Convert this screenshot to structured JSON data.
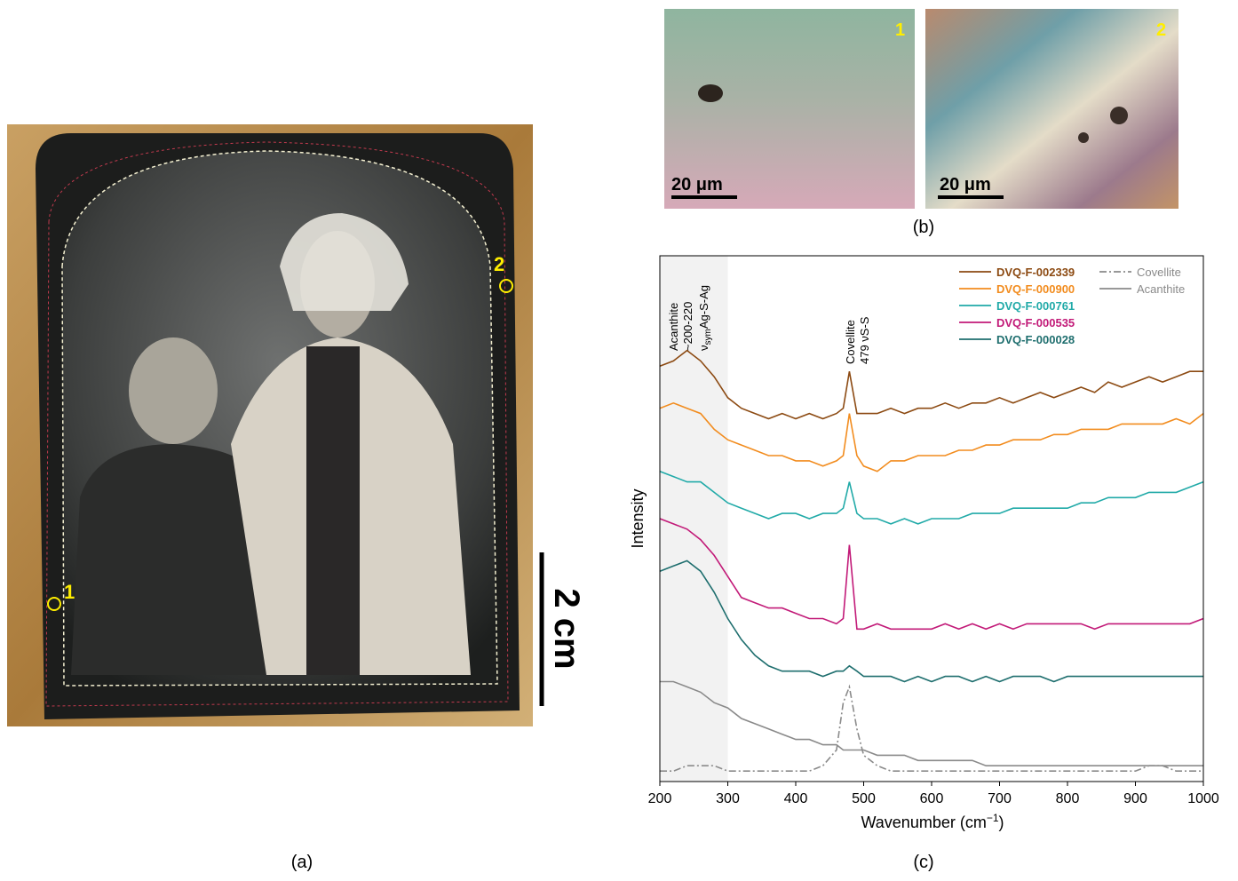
{
  "panel_a": {
    "point_1": "1",
    "point_2": "2",
    "scale": "2 cm",
    "caption": "(a)"
  },
  "panel_b": {
    "image_1_label": "1",
    "image_2_label": "2",
    "scale_1": "20 μm",
    "scale_2": "20 μm",
    "caption": "(b)"
  },
  "chart_caption": "(c)",
  "chart_data": {
    "type": "line",
    "xlabel": {
      "text": "Wavenumber (cm",
      "sup": "−1",
      "end": ")"
    },
    "ylabel": "Intensity",
    "annotations": {
      "acanthite": [
        "Acanthite",
        "~200-220"
      ],
      "acanthite_mode": {
        "nu": "ν",
        "sub": "sym",
        "text": "Ag-S-Ag"
      },
      "covellite": [
        "Covellite",
        "479 νS-S"
      ]
    },
    "shade": [
      200,
      300
    ],
    "x": [
      200,
      220,
      240,
      260,
      280,
      300,
      320,
      340,
      360,
      380,
      400,
      420,
      440,
      460,
      470,
      479,
      490,
      500,
      520,
      540,
      560,
      580,
      600,
      620,
      640,
      660,
      680,
      700,
      720,
      740,
      760,
      780,
      800,
      820,
      840,
      860,
      880,
      900,
      920,
      940,
      960,
      980,
      1000
    ],
    "series": [
      {
        "name": "DVQ-F-002339",
        "color": "#8c4a12",
        "style": "solid",
        "values": [
          79,
          80,
          82,
          80,
          77,
          73,
          71,
          70,
          69,
          70,
          69,
          70,
          69,
          70,
          71,
          78,
          70,
          70,
          70,
          71,
          70,
          71,
          71,
          72,
          71,
          72,
          72,
          73,
          72,
          73,
          74,
          73,
          74,
          75,
          74,
          76,
          75,
          76,
          77,
          76,
          77,
          78,
          78
        ]
      },
      {
        "name": "DVQ-F-000900",
        "color": "#f28c1e",
        "style": "solid",
        "values": [
          71,
          72,
          71,
          70,
          67,
          65,
          64,
          63,
          62,
          62,
          61,
          61,
          60,
          61,
          62,
          70,
          62,
          60,
          59,
          61,
          61,
          62,
          62,
          62,
          63,
          63,
          64,
          64,
          65,
          65,
          65,
          66,
          66,
          67,
          67,
          67,
          68,
          68,
          68,
          68,
          69,
          68,
          70
        ]
      },
      {
        "name": "DVQ-F-000761",
        "color": "#21aaa8",
        "style": "solid",
        "values": [
          59,
          58,
          57,
          57,
          55,
          53,
          52,
          51,
          50,
          51,
          51,
          50,
          51,
          51,
          52,
          57,
          51,
          50,
          50,
          49,
          50,
          49,
          50,
          50,
          50,
          51,
          51,
          51,
          52,
          52,
          52,
          52,
          52,
          53,
          53,
          54,
          54,
          54,
          55,
          55,
          55,
          56,
          57
        ]
      },
      {
        "name": "DVQ-F-000535",
        "color": "#c21a78",
        "style": "solid",
        "values": [
          50,
          49,
          48,
          46,
          43,
          39,
          35,
          34,
          33,
          33,
          32,
          31,
          31,
          30,
          31,
          45,
          29,
          29,
          30,
          29,
          29,
          29,
          29,
          30,
          29,
          30,
          29,
          30,
          29,
          30,
          30,
          30,
          30,
          30,
          29,
          30,
          30,
          30,
          30,
          30,
          30,
          30,
          31
        ]
      },
      {
        "name": "DVQ-F-000028",
        "color": "#1e6e6e",
        "style": "solid",
        "values": [
          40,
          41,
          42,
          40,
          36,
          31,
          27,
          24,
          22,
          21,
          21,
          21,
          20,
          21,
          21,
          22,
          21,
          20,
          20,
          20,
          19,
          20,
          19,
          20,
          20,
          19,
          20,
          19,
          20,
          20,
          20,
          19,
          20,
          20,
          20,
          20,
          20,
          20,
          20,
          20,
          20,
          20,
          20
        ]
      },
      {
        "name": "Covellite",
        "color": "#8a8a8a",
        "style": "dash-dot",
        "values": [
          2,
          2,
          3,
          3,
          3,
          2,
          2,
          2,
          2,
          2,
          2,
          2,
          3,
          6,
          15,
          18,
          10,
          5,
          3,
          2,
          2,
          2,
          2,
          2,
          2,
          2,
          2,
          2,
          2,
          2,
          2,
          2,
          2,
          2,
          2,
          2,
          2,
          2,
          3,
          3,
          2,
          2,
          2
        ]
      },
      {
        "name": "Acanthite",
        "color": "#8a8a8a",
        "style": "solid",
        "values": [
          19,
          19,
          18,
          17,
          15,
          14,
          12,
          11,
          10,
          9,
          8,
          8,
          7,
          7,
          6,
          6,
          6,
          6,
          5,
          5,
          5,
          4,
          4,
          4,
          4,
          4,
          3,
          3,
          3,
          3,
          3,
          3,
          3,
          3,
          3,
          3,
          3,
          3,
          3,
          3,
          3,
          3,
          3
        ]
      }
    ],
    "xlim": [
      200,
      1000
    ],
    "xticks": [
      200,
      300,
      400,
      500,
      600,
      700,
      800,
      900,
      1000
    ],
    "ylim": [
      0,
      100
    ]
  }
}
